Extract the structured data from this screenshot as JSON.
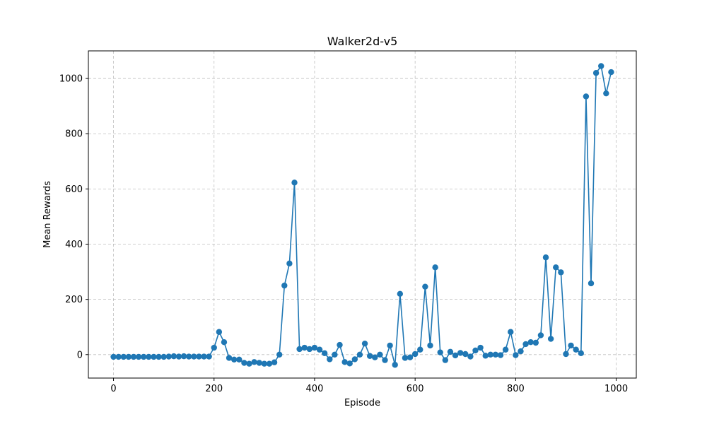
{
  "chart_data": {
    "type": "line",
    "title": "Walker2d-v5",
    "xlabel": "Episode",
    "ylabel": "Mean Rewards",
    "xlim": [
      -50,
      1040
    ],
    "ylim": [
      -85,
      1100
    ],
    "xticks": [
      0,
      200,
      400,
      600,
      800,
      1000
    ],
    "yticks": [
      0,
      200,
      400,
      600,
      800,
      1000
    ],
    "grid": true,
    "color": "#1f77b4",
    "marker": "circle",
    "series": [
      {
        "x": [
          0,
          10,
          20,
          30,
          40,
          50,
          60,
          70,
          80,
          90,
          100,
          110,
          120,
          130,
          140,
          150,
          160,
          170,
          180,
          190,
          200,
          210,
          220,
          230,
          240,
          250,
          260,
          270,
          280,
          290,
          300,
          310,
          320,
          330,
          340,
          350,
          360,
          370,
          380,
          390,
          400,
          410,
          420,
          430,
          440,
          450,
          460,
          470,
          480,
          490,
          500,
          510,
          520,
          530,
          540,
          550,
          560,
          570,
          580,
          590,
          600,
          610,
          620,
          630,
          640,
          650,
          660,
          670,
          680,
          690,
          700,
          710,
          720,
          730,
          740,
          750,
          760,
          770,
          780,
          790,
          800,
          810,
          820,
          830,
          840,
          850,
          860,
          870,
          880,
          890,
          900,
          910,
          920,
          930,
          940,
          950,
          960,
          970,
          980,
          990
        ],
        "values": [
          -8,
          -8,
          -8,
          -8,
          -8,
          -8,
          -8,
          -8,
          -8,
          -8,
          -8,
          -7,
          -6,
          -7,
          -6,
          -7,
          -7,
          -7,
          -7,
          -7,
          25,
          82,
          45,
          -12,
          -18,
          -18,
          -30,
          -33,
          -27,
          -30,
          -33,
          -33,
          -28,
          0,
          250,
          330,
          623,
          20,
          25,
          20,
          25,
          18,
          5,
          -17,
          0,
          35,
          -27,
          -32,
          -17,
          0,
          40,
          -5,
          -10,
          0,
          -20,
          33,
          -37,
          220,
          -12,
          -10,
          2,
          18,
          246,
          33,
          316,
          8,
          -20,
          10,
          -3,
          6,
          2,
          -7,
          15,
          25,
          -4,
          0,
          0,
          -2,
          18,
          82,
          -2,
          12,
          38,
          45,
          43,
          70,
          352,
          57,
          316,
          298,
          2,
          33,
          18,
          5,
          935,
          258,
          1020,
          1045,
          946,
          1023
        ]
      }
    ]
  }
}
